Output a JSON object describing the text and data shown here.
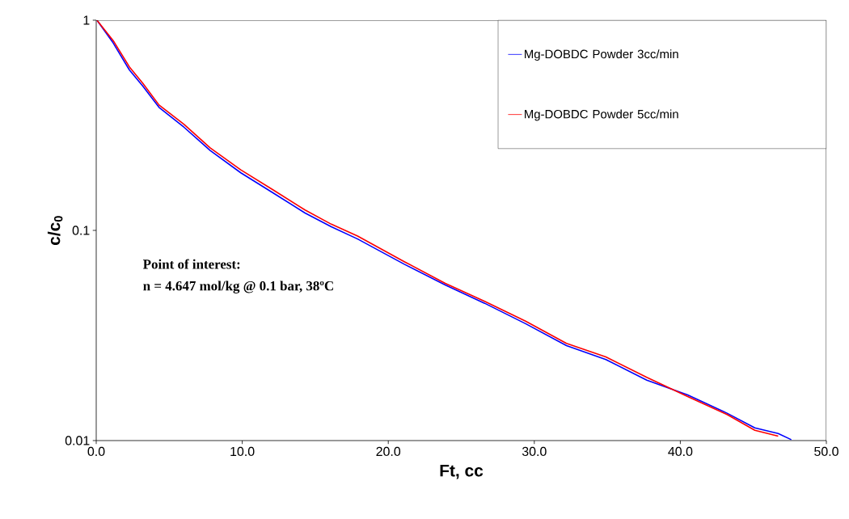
{
  "chart_data": {
    "type": "line",
    "xlabel": "Ft, cc",
    "ylabel": "c/c$_{0}$",
    "log": "y",
    "legend": "top right",
    "grid": false,
    "marker": "none",
    "line_style": "solid",
    "xlim": [
      0,
      50
    ],
    "ylim": [
      0.01,
      1
    ],
    "xticks": [
      {
        "value": 0,
        "label": "0.0"
      },
      {
        "value": 10,
        "label": "10.0"
      },
      {
        "value": 20,
        "label": "20.0"
      },
      {
        "value": 30,
        "label": "30.0"
      },
      {
        "value": 40,
        "label": "40.0"
      },
      {
        "value": 50,
        "label": "50.0"
      }
    ],
    "yticks": [
      0.01,
      0.1,
      1
    ],
    "annotations": [
      "Point of interest:",
      "n = 4.647 mol/kg @ 0.1 bar, 38ºC"
    ],
    "series": [
      {
        "name": "Mg-DOBDC Powder 3cc/min",
        "color": "#0000ff",
        "x": [
          0.05,
          1.16,
          2.27,
          3.2,
          4.3,
          6.0,
          7.8,
          9.9,
          12.1,
          14.3,
          16.1,
          17.9,
          21.1,
          23.9,
          26.6,
          29.4,
          32.2,
          34.9,
          37.7,
          40.5,
          43.2,
          45.1,
          46.7,
          47.6
        ],
        "values": [
          1.0,
          0.78,
          0.58,
          0.485,
          0.385,
          0.31,
          0.24,
          0.188,
          0.151,
          0.121,
          0.104,
          0.091,
          0.069,
          0.055,
          0.045,
          0.036,
          0.0283,
          0.0243,
          0.0194,
          0.0165,
          0.0135,
          0.0115,
          0.0108,
          0.0101
        ]
      },
      {
        "name": "Mg-DOBDC Powder 5cc/min",
        "color": "#ff0000",
        "x": [
          0.05,
          1.16,
          2.27,
          3.2,
          4.3,
          6.0,
          7.8,
          9.9,
          12.1,
          14.3,
          16.1,
          17.9,
          21.1,
          23.9,
          26.6,
          29.4,
          32.2,
          34.9,
          37.7,
          40.5,
          43.2,
          45.1,
          46.7
        ],
        "values": [
          1.0,
          0.8,
          0.6,
          0.5,
          0.395,
          0.32,
          0.247,
          0.194,
          0.156,
          0.125,
          0.107,
          0.094,
          0.071,
          0.056,
          0.046,
          0.037,
          0.029,
          0.025,
          0.02,
          0.0162,
          0.0133,
          0.0112,
          0.0105
        ]
      }
    ]
  }
}
